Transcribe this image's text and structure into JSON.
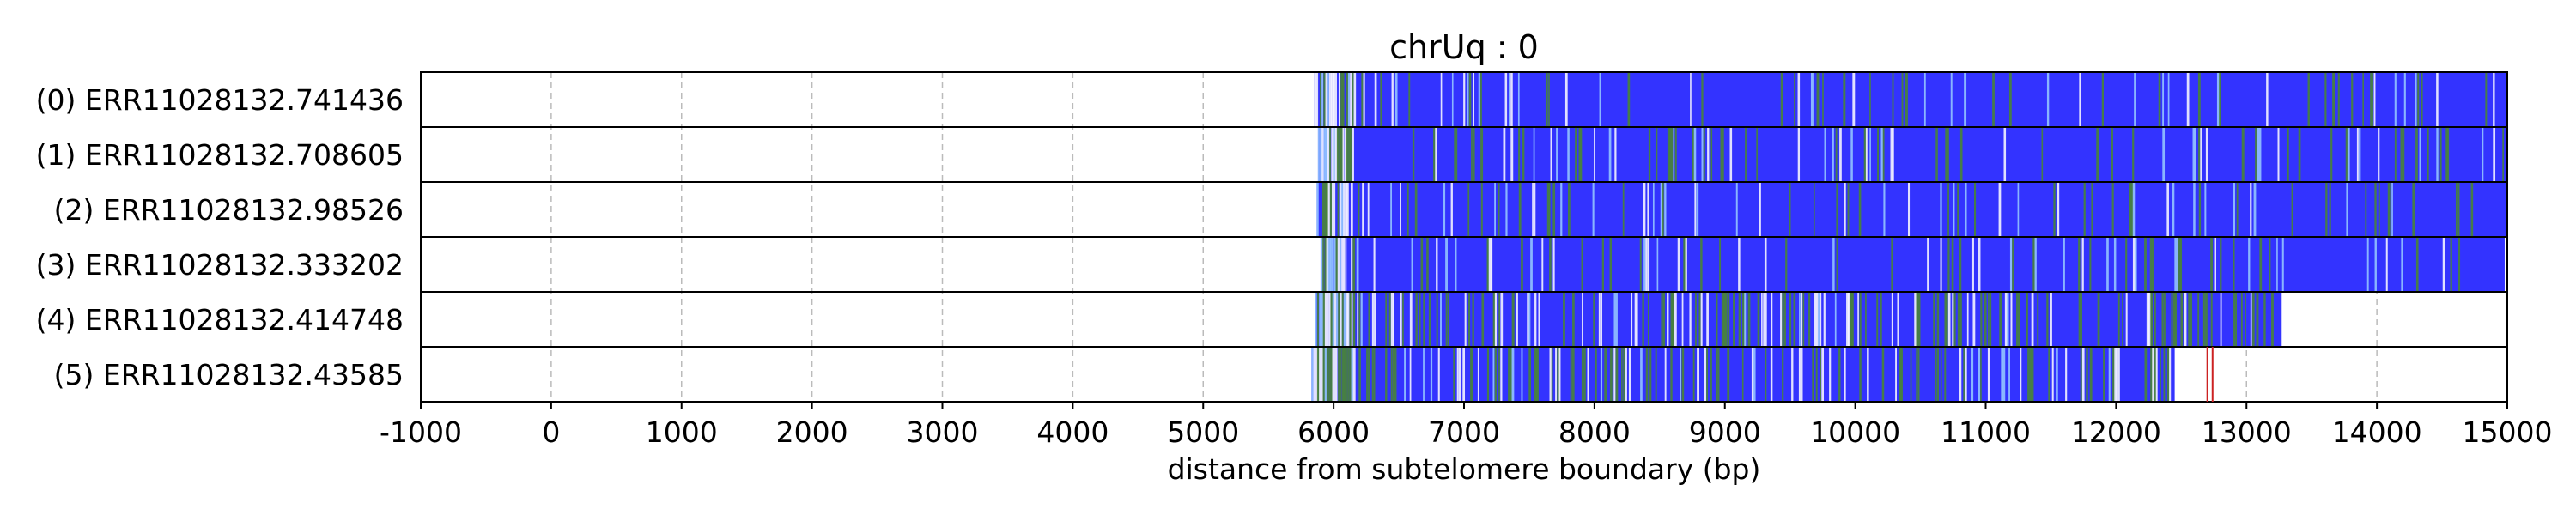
{
  "chart_data": {
    "type": "heatmap",
    "title": "chrUq : 0",
    "xlabel": "distance from subtelomere boundary (bp)",
    "ylabel": "",
    "xlim": [
      -1000,
      15000
    ],
    "xticks": [
      -1000,
      0,
      1000,
      2000,
      3000,
      4000,
      5000,
      6000,
      7000,
      8000,
      9000,
      10000,
      11000,
      12000,
      13000,
      14000,
      15000
    ],
    "xtick_labels": [
      "-1000",
      "0",
      "1000",
      "2000",
      "3000",
      "4000",
      "5000",
      "6000",
      "7000",
      "8000",
      "9000",
      "10000",
      "11000",
      "12000",
      "13000",
      "14000",
      "15000"
    ],
    "grid": "vertical dashed",
    "colors": {
      "blue": "#3333ff",
      "green": "#4a8a2a",
      "light_blue": "#99ccff",
      "white": "#ffffff",
      "red": "#cc2222",
      "grid": "#bbbbbb"
    },
    "reads": [
      {
        "label": "(0) ERR11028132.741436",
        "start": 5850,
        "end": 15000
      },
      {
        "label": "(1) ERR11028132.708605",
        "start": 5880,
        "end": 15000
      },
      {
        "label": "(2) ERR11028132.98526",
        "start": 5870,
        "end": 15000
      },
      {
        "label": "(3) ERR11028132.333202",
        "start": 5900,
        "end": 14980
      },
      {
        "label": "(4) ERR11028132.414748",
        "start": 5860,
        "end": 13270
      },
      {
        "label": "(5) ERR11028132.43585",
        "start": 5830,
        "end": 12450
      }
    ]
  }
}
